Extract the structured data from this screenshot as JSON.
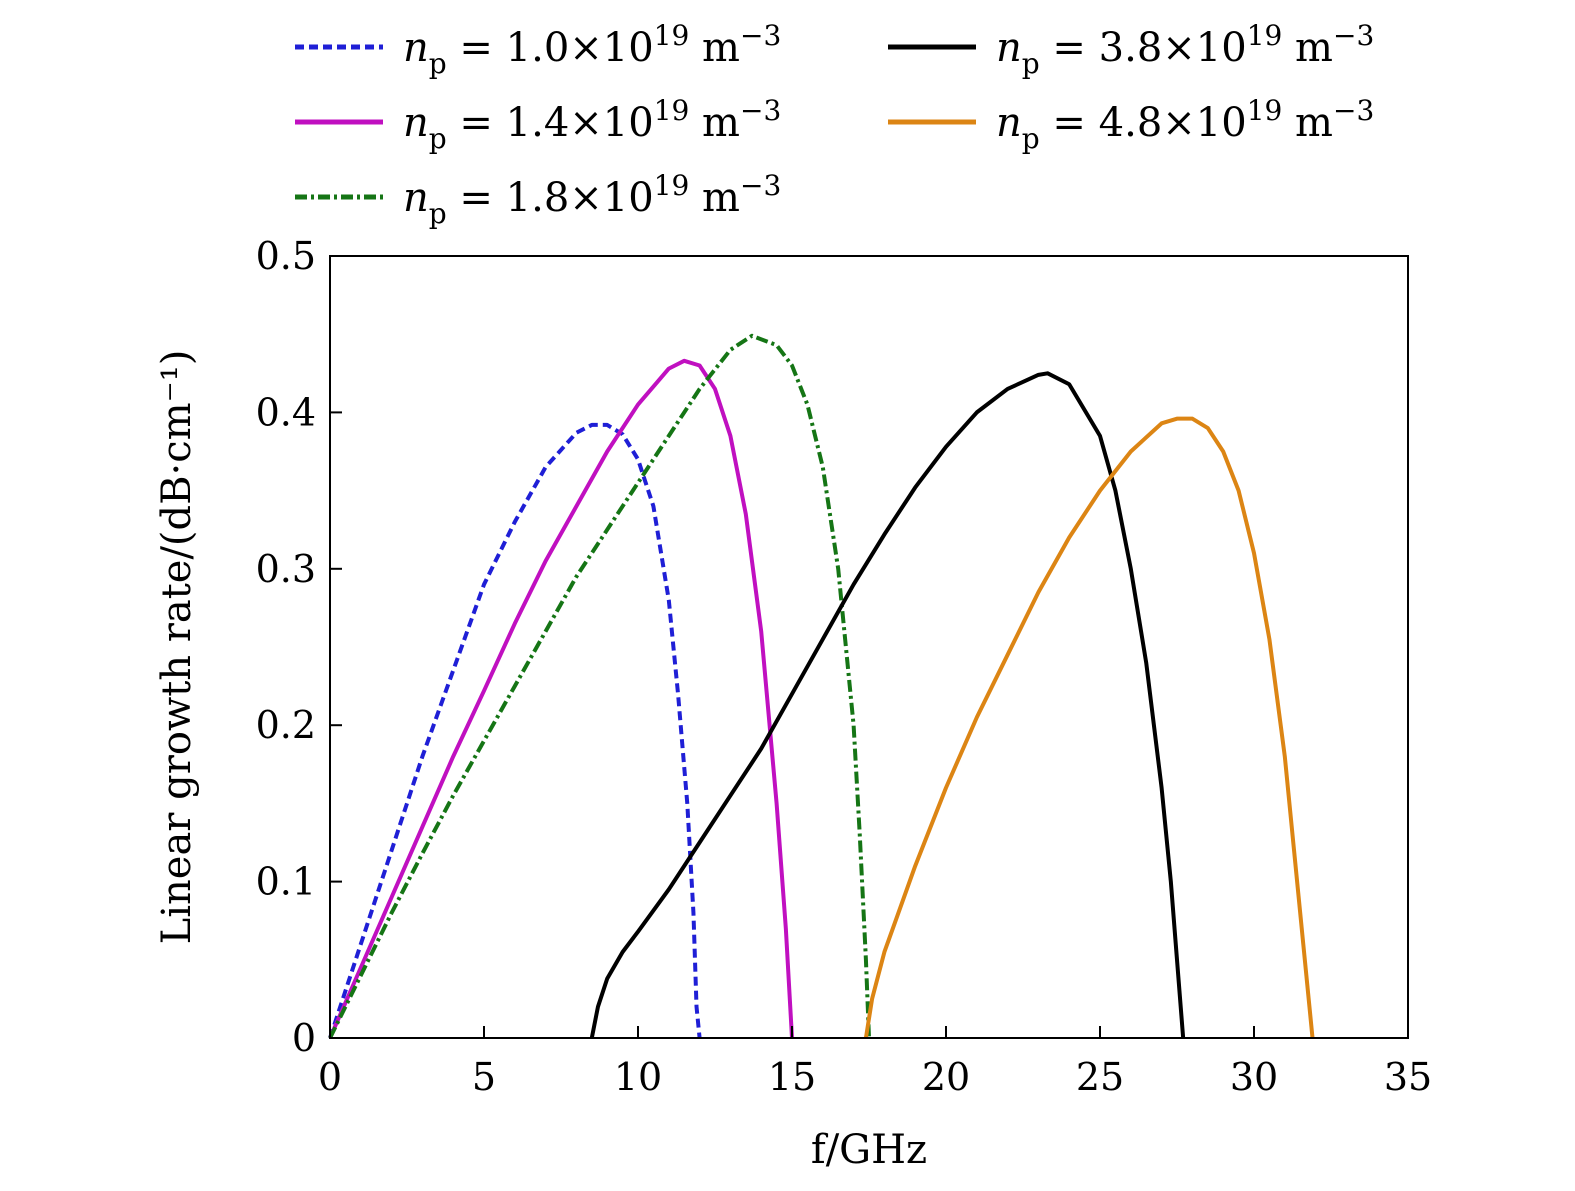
{
  "chart_data": {
    "type": "line",
    "title": "",
    "xlabel": "f/GHz",
    "ylabel": "Linear growth rate/(dB·cm⁻¹)",
    "xlim": [
      0,
      35
    ],
    "ylim": [
      0,
      0.5
    ],
    "xticks": [
      0,
      5,
      10,
      15,
      20,
      25,
      30,
      35
    ],
    "yticks": [
      0,
      0.1,
      0.2,
      0.3,
      0.4,
      0.5
    ],
    "xtick_labels": [
      "0",
      "5",
      "10",
      "15",
      "20",
      "25",
      "30",
      "35"
    ],
    "ytick_labels": [
      "0",
      "0.1",
      "0.2",
      "0.3",
      "0.4",
      "0.5"
    ],
    "grid": false,
    "legend_position": "top",
    "series": [
      {
        "name": "n_p = 1.0×10^19 m^-3",
        "legend": {
          "var": "n",
          "sub": "p",
          "mant": "1.0",
          "exp": "19",
          "unit": "m",
          "uexp": "−3"
        },
        "color": "#1f1fd6",
        "style": "dashed",
        "x": [
          0,
          1,
          2,
          3,
          4,
          5,
          6,
          7,
          8,
          8.5,
          9,
          9.5,
          10,
          10.5,
          11,
          11.3,
          11.6,
          11.8,
          11.9,
          12.0
        ],
        "y": [
          0,
          0.06,
          0.12,
          0.18,
          0.235,
          0.29,
          0.33,
          0.365,
          0.387,
          0.392,
          0.392,
          0.386,
          0.37,
          0.34,
          0.28,
          0.22,
          0.15,
          0.08,
          0.02,
          0
        ]
      },
      {
        "name": "n_p = 1.4×10^19 m^-3",
        "legend": {
          "var": "n",
          "sub": "p",
          "mant": "1.4",
          "exp": "19",
          "unit": "m",
          "uexp": "−3"
        },
        "color": "#c010c0",
        "style": "solid",
        "x": [
          0,
          1,
          2,
          3,
          4,
          5,
          6,
          7,
          8,
          9,
          10,
          11,
          11.5,
          12,
          12.5,
          13,
          13.5,
          14,
          14.5,
          14.8,
          15.0
        ],
        "y": [
          0,
          0.045,
          0.09,
          0.135,
          0.18,
          0.222,
          0.265,
          0.305,
          0.34,
          0.375,
          0.405,
          0.428,
          0.433,
          0.43,
          0.415,
          0.385,
          0.335,
          0.26,
          0.15,
          0.07,
          0
        ]
      },
      {
        "name": "n_p = 1.8×10^19 m^-3",
        "legend": {
          "var": "n",
          "sub": "p",
          "mant": "1.8",
          "exp": "19",
          "unit": "m",
          "uexp": "−3"
        },
        "color": "#157515",
        "style": "dashdot",
        "x": [
          0,
          1,
          2,
          3,
          4,
          5,
          6,
          7,
          8,
          9,
          10,
          11,
          12,
          13,
          13.7,
          14.5,
          15,
          15.5,
          16,
          16.5,
          17,
          17.2,
          17.4,
          17.5
        ],
        "y": [
          0,
          0.04,
          0.08,
          0.118,
          0.155,
          0.19,
          0.225,
          0.26,
          0.295,
          0.325,
          0.355,
          0.385,
          0.415,
          0.44,
          0.449,
          0.443,
          0.43,
          0.405,
          0.365,
          0.3,
          0.2,
          0.13,
          0.05,
          0
        ]
      },
      {
        "name": "n_p = 3.8×10^19 m^-3",
        "legend": {
          "var": "n",
          "sub": "p",
          "mant": "3.8",
          "exp": "19",
          "unit": "m",
          "uexp": "−3"
        },
        "color": "#000000",
        "style": "solid",
        "x": [
          8.5,
          8.7,
          9,
          9.5,
          10,
          11,
          12,
          13,
          14,
          15,
          16,
          17,
          18,
          19,
          20,
          21,
          22,
          23,
          23.3,
          24,
          25,
          25.5,
          26,
          26.5,
          27,
          27.3,
          27.5,
          27.7
        ],
        "y": [
          0,
          0.02,
          0.038,
          0.055,
          0.068,
          0.095,
          0.125,
          0.155,
          0.185,
          0.22,
          0.255,
          0.29,
          0.322,
          0.352,
          0.378,
          0.4,
          0.415,
          0.424,
          0.425,
          0.418,
          0.385,
          0.35,
          0.3,
          0.24,
          0.16,
          0.1,
          0.05,
          0
        ]
      },
      {
        "name": "n_p = 4.8×10^19 m^-3",
        "legend": {
          "var": "n",
          "sub": "p",
          "mant": "4.8",
          "exp": "19",
          "unit": "m",
          "uexp": "−3"
        },
        "color": "#dc8514",
        "style": "solid",
        "x": [
          17.4,
          17.6,
          18,
          19,
          20,
          21,
          22,
          23,
          24,
          25,
          26,
          27,
          27.5,
          28,
          28.5,
          29,
          29.5,
          30,
          30.5,
          31,
          31.3,
          31.6,
          31.8,
          31.9
        ],
        "y": [
          0,
          0.025,
          0.055,
          0.11,
          0.16,
          0.205,
          0.245,
          0.285,
          0.32,
          0.35,
          0.375,
          0.393,
          0.396,
          0.396,
          0.39,
          0.375,
          0.35,
          0.31,
          0.255,
          0.18,
          0.12,
          0.06,
          0.02,
          0
        ]
      }
    ]
  }
}
